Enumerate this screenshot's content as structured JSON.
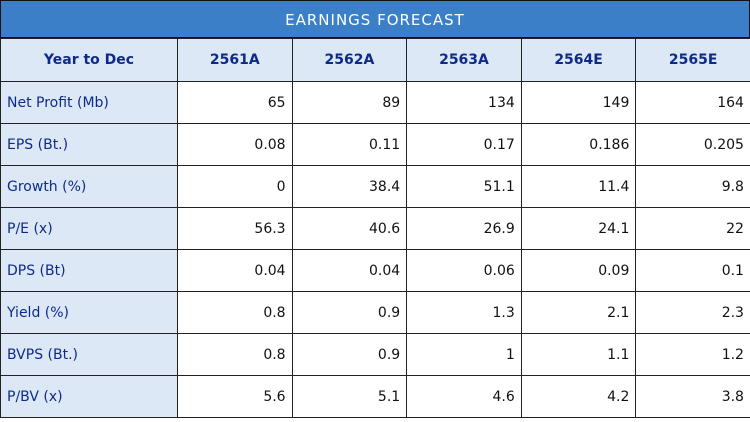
{
  "title": "EARNINGS FORECAST",
  "header": [
    "Year to Dec",
    "2561A",
    "2562A",
    "2563A",
    "2564E",
    "2565E"
  ],
  "rows": [
    {
      "label": "Net Profit (Mb)",
      "values": [
        "65",
        "89",
        "134",
        "149",
        "164"
      ]
    },
    {
      "label": "EPS (Bt.)",
      "values": [
        "0.08",
        "0.11",
        "0.17",
        "0.186",
        "0.205"
      ]
    },
    {
      "label": "Growth (%)",
      "values": [
        "0",
        "38.4",
        "51.1",
        "11.4",
        "9.8"
      ]
    },
    {
      "label": "P/E (x)",
      "values": [
        "56.3",
        "40.6",
        "26.9",
        "24.1",
        "22"
      ]
    },
    {
      "label": "DPS (Bt)",
      "values": [
        "0.04",
        "0.04",
        "0.06",
        "0.09",
        "0.1"
      ]
    },
    {
      "label": "Yield (%)",
      "values": [
        "0.8",
        "0.9",
        "1.3",
        "2.1",
        "2.3"
      ]
    },
    {
      "label": "BVPS (Bt.)",
      "values": [
        "0.8",
        "0.9",
        "1",
        "1.1",
        "1.2"
      ]
    },
    {
      "label": "P/BV (x)",
      "values": [
        "5.6",
        "5.1",
        "4.6",
        "4.2",
        "3.8"
      ]
    }
  ],
  "colors": {
    "title_bg": "#3a7fc8",
    "header_bg": "#dde8f7",
    "header_text": "#0d2a8a"
  }
}
